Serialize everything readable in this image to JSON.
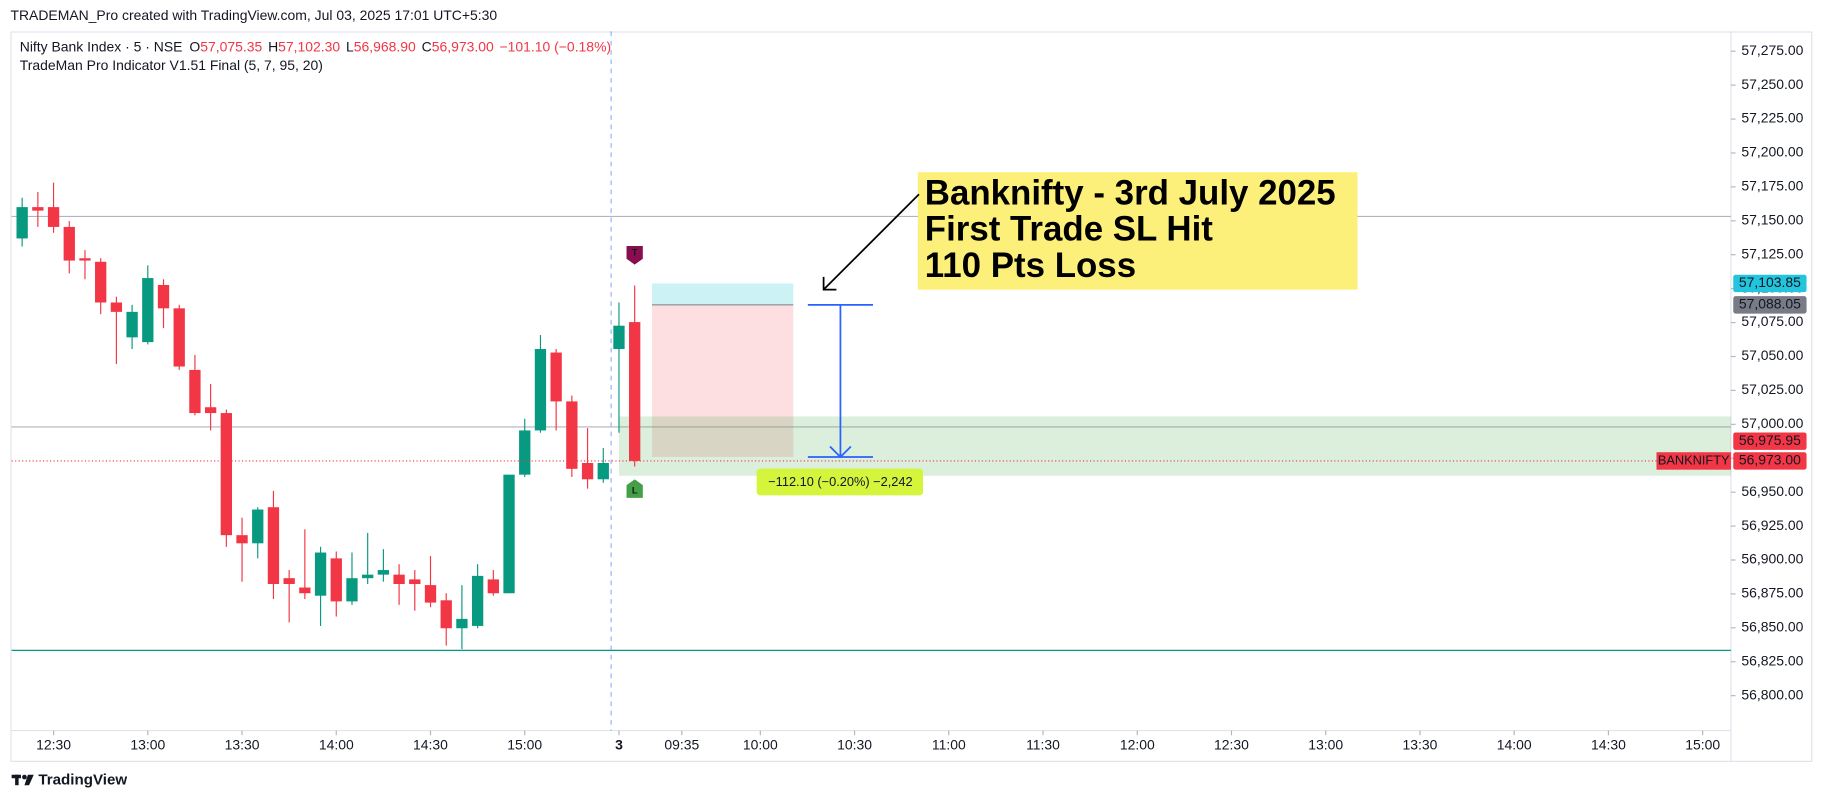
{
  "header": "TRADEMAN_Pro created with TradingView.com, Jul 03, 2025 17:01 UTC+5:30",
  "footer": "TradingView",
  "chart_data": {
    "type": "candlestick",
    "title": "Nifty Bank Index · 5 · NSE",
    "subtitle": "TradeMan Pro Indicator V1.51 Final (5, 7, 95, 20)",
    "ohlc_legend": [
      {
        "key": "O",
        "value": "57,075.35"
      },
      {
        "key": "H",
        "value": "57,102.30"
      },
      {
        "key": "L",
        "value": "56,968.90"
      },
      {
        "key": "C",
        "value": "56,973.00"
      }
    ],
    "change": "−101.10 (−0.18%)",
    "up_color": "#089981",
    "down_color": "#f23645",
    "open": [
      57137.0,
      57160.1,
      57160.1,
      57145.5,
      57122.4,
      57119.8,
      57089.8,
      57064.1,
      57060.6,
      57102.7,
      57085.5,
      57040.1,
      57012.6,
      57008.3,
      56918.3,
      56912.3,
      56938.9,
      56886.6,
      56879.7,
      56873.7,
      56901.2,
      56869.5,
      56886.6,
      56889.2,
      56889.2,
      56885.7,
      56881.5,
      56870.3,
      56849.7,
      56851.4,
      56885.7,
      56875.5,
      56962.9,
      56995.5,
      57052.9,
      57016.9,
      56971.5,
      56959.5,
      57055.5,
      57075.35
    ],
    "high": [
      57167.0,
      57171.3,
      57178.1,
      57149.8,
      57128.4,
      57122.4,
      57094.1,
      57088.1,
      57117.2,
      57106.9,
      57088.1,
      57051.2,
      57029.8,
      57010.9,
      56931.2,
      56938.9,
      56950.9,
      56892.6,
      56922.6,
      56909.7,
      56906.3,
      56905.5,
      56920.0,
      56908.0,
      56896.9,
      56892.6,
      56902.9,
      56875.5,
      56881.5,
      56896.9,
      56892.6,
      56962.9,
      57004.1,
      57065.8,
      57055.5,
      57021.2,
      56997.2,
      56982.6,
      57089.8,
      57102.3
    ],
    "low": [
      57131.0,
      57145.5,
      57141.2,
      57111.2,
      57106.9,
      57081.2,
      57044.4,
      57055.5,
      57058.9,
      57070.9,
      57040.1,
      57006.6,
      56995.5,
      56909.7,
      56884.0,
      56901.2,
      56871.2,
      56854.0,
      56871.2,
      56851.4,
      56858.3,
      56866.9,
      56882.3,
      56884.0,
      56866.9,
      56862.6,
      56865.2,
      56836.9,
      56834.3,
      56849.7,
      56873.7,
      56875.5,
      56961.2,
      56993.8,
      56995.5,
      56961.2,
      56952.6,
      56956.9,
      56993.8,
      56968.9
    ],
    "close": [
      57160.1,
      57157.5,
      57145.5,
      57120.7,
      57120.7,
      57089.8,
      57082.9,
      57082.9,
      57107.8,
      57085.5,
      57042.6,
      57008.3,
      57008.3,
      56918.3,
      56912.3,
      56937.2,
      56882.3,
      56882.3,
      56875.5,
      56905.5,
      56869.5,
      56886.6,
      56889.2,
      56892.6,
      56882.3,
      56882.3,
      56868.6,
      56849.7,
      56856.6,
      56888.3,
      56875.5,
      56962.9,
      56995.5,
      57055.5,
      57016.9,
      56967.2,
      56959.5,
      56971.5,
      57072.7,
      56973.0
    ],
    "xlim": [
      -0.67,
      108.8
    ],
    "xticks": [
      {
        "value": 2,
        "label": "12:30"
      },
      {
        "value": 8,
        "label": "13:00"
      },
      {
        "value": 14,
        "label": "13:30"
      },
      {
        "value": 20,
        "label": "14:00"
      },
      {
        "value": 26,
        "label": "14:30"
      },
      {
        "value": 32,
        "label": "15:00"
      },
      {
        "value": 38,
        "label": "3",
        "bold": true
      },
      {
        "value": 42,
        "label": "09:35"
      },
      {
        "value": 47,
        "label": "10:00"
      },
      {
        "value": 53,
        "label": "10:30"
      },
      {
        "value": 59,
        "label": "11:00"
      },
      {
        "value": 65,
        "label": "11:30"
      },
      {
        "value": 71,
        "label": "12:00"
      },
      {
        "value": 77,
        "label": "12:30"
      },
      {
        "value": 83,
        "label": "13:00"
      },
      {
        "value": 89,
        "label": "13:30"
      },
      {
        "value": 95,
        "label": "14:00"
      },
      {
        "value": 101,
        "label": "14:30"
      },
      {
        "value": 107,
        "label": "15:00"
      }
    ],
    "session_break": 37.5,
    "ylim": [
      56774.3,
      57289.6
    ],
    "yticks": [
      {
        "value": 56800,
        "label": "56,800.00"
      },
      {
        "value": 56825,
        "label": "56,825.00"
      },
      {
        "value": 56850,
        "label": "56,850.00"
      },
      {
        "value": 56875,
        "label": "56,875.00"
      },
      {
        "value": 56900,
        "label": "56,900.00"
      },
      {
        "value": 56925,
        "label": "56,925.00"
      },
      {
        "value": 56950,
        "label": "56,950.00"
      },
      {
        "value": 56975,
        "label": "56,975.00"
      },
      {
        "value": 57000,
        "label": "57,000.00"
      },
      {
        "value": 57025,
        "label": "57,025.00"
      },
      {
        "value": 57050,
        "label": "57,050.00"
      },
      {
        "value": 57075,
        "label": "57,075.00"
      },
      {
        "value": 57100,
        "label": "57,100.00"
      },
      {
        "value": 57125,
        "label": "57,125.00"
      },
      {
        "value": 57150,
        "label": "57,150.00"
      },
      {
        "value": 57175,
        "label": "57,175.00"
      },
      {
        "value": 57200,
        "label": "57,200.00"
      },
      {
        "value": 57225,
        "label": "57,225.00"
      },
      {
        "value": 57250,
        "label": "57,250.00"
      },
      {
        "value": 57275,
        "label": "57,275.00"
      }
    ],
    "hlines": [
      {
        "value": 57153.2,
        "color": "#b2b5be"
      },
      {
        "value": 56998.1,
        "color": "#b2b5be"
      },
      {
        "value": 56833.4,
        "color": "#089981"
      }
    ],
    "zones": [
      {
        "from": 57103.85,
        "to": 57088.05,
        "x0": 40.1,
        "x1": 49.1,
        "color": "rgba(0,188,212,0.2)"
      },
      {
        "from": 57088.05,
        "to": 56975.95,
        "x0": 40.1,
        "x1": 49.1,
        "color": "rgba(242,54,69,0.16)"
      },
      {
        "from": 57005.8,
        "to": 56962.1,
        "x0": 38,
        "x1": 108.8,
        "color": "rgba(76,175,80,0.2)"
      }
    ],
    "measure": {
      "from": 57088.05,
      "to": 56975.95,
      "x": 52.1,
      "label": "−112.10 (−0.20%) −2,242",
      "color": "#2962ff",
      "label_color": "#d4f53c"
    },
    "markers": [
      {
        "label": "T",
        "color": "#880e4f",
        "side": "above"
      },
      {
        "label": "L",
        "color": "#43a047",
        "side": "below"
      }
    ],
    "price_labels": [
      {
        "value": 57103.85,
        "label": "57,103.85",
        "color": "#22c5dd",
        "text_color": "#131722"
      },
      {
        "value": 57088.05,
        "label": "57,088.05",
        "color": "#787b86",
        "text_color": "#ffffff"
      },
      {
        "value": 56975.95,
        "label": "56,975.95",
        "color": "#f23645",
        "text_color": "#ffffff"
      },
      {
        "value": 56973.0,
        "label": "56,973.00",
        "color": "#f23645",
        "text_color": "#ffffff"
      }
    ],
    "symbol_tag": "BANKNIFTY",
    "annotation": {
      "lines": [
        "Banknifty - 3rd July 2025",
        "First Trade SL Hit",
        "110 Pts Loss"
      ],
      "color": "#fdf07a"
    }
  }
}
